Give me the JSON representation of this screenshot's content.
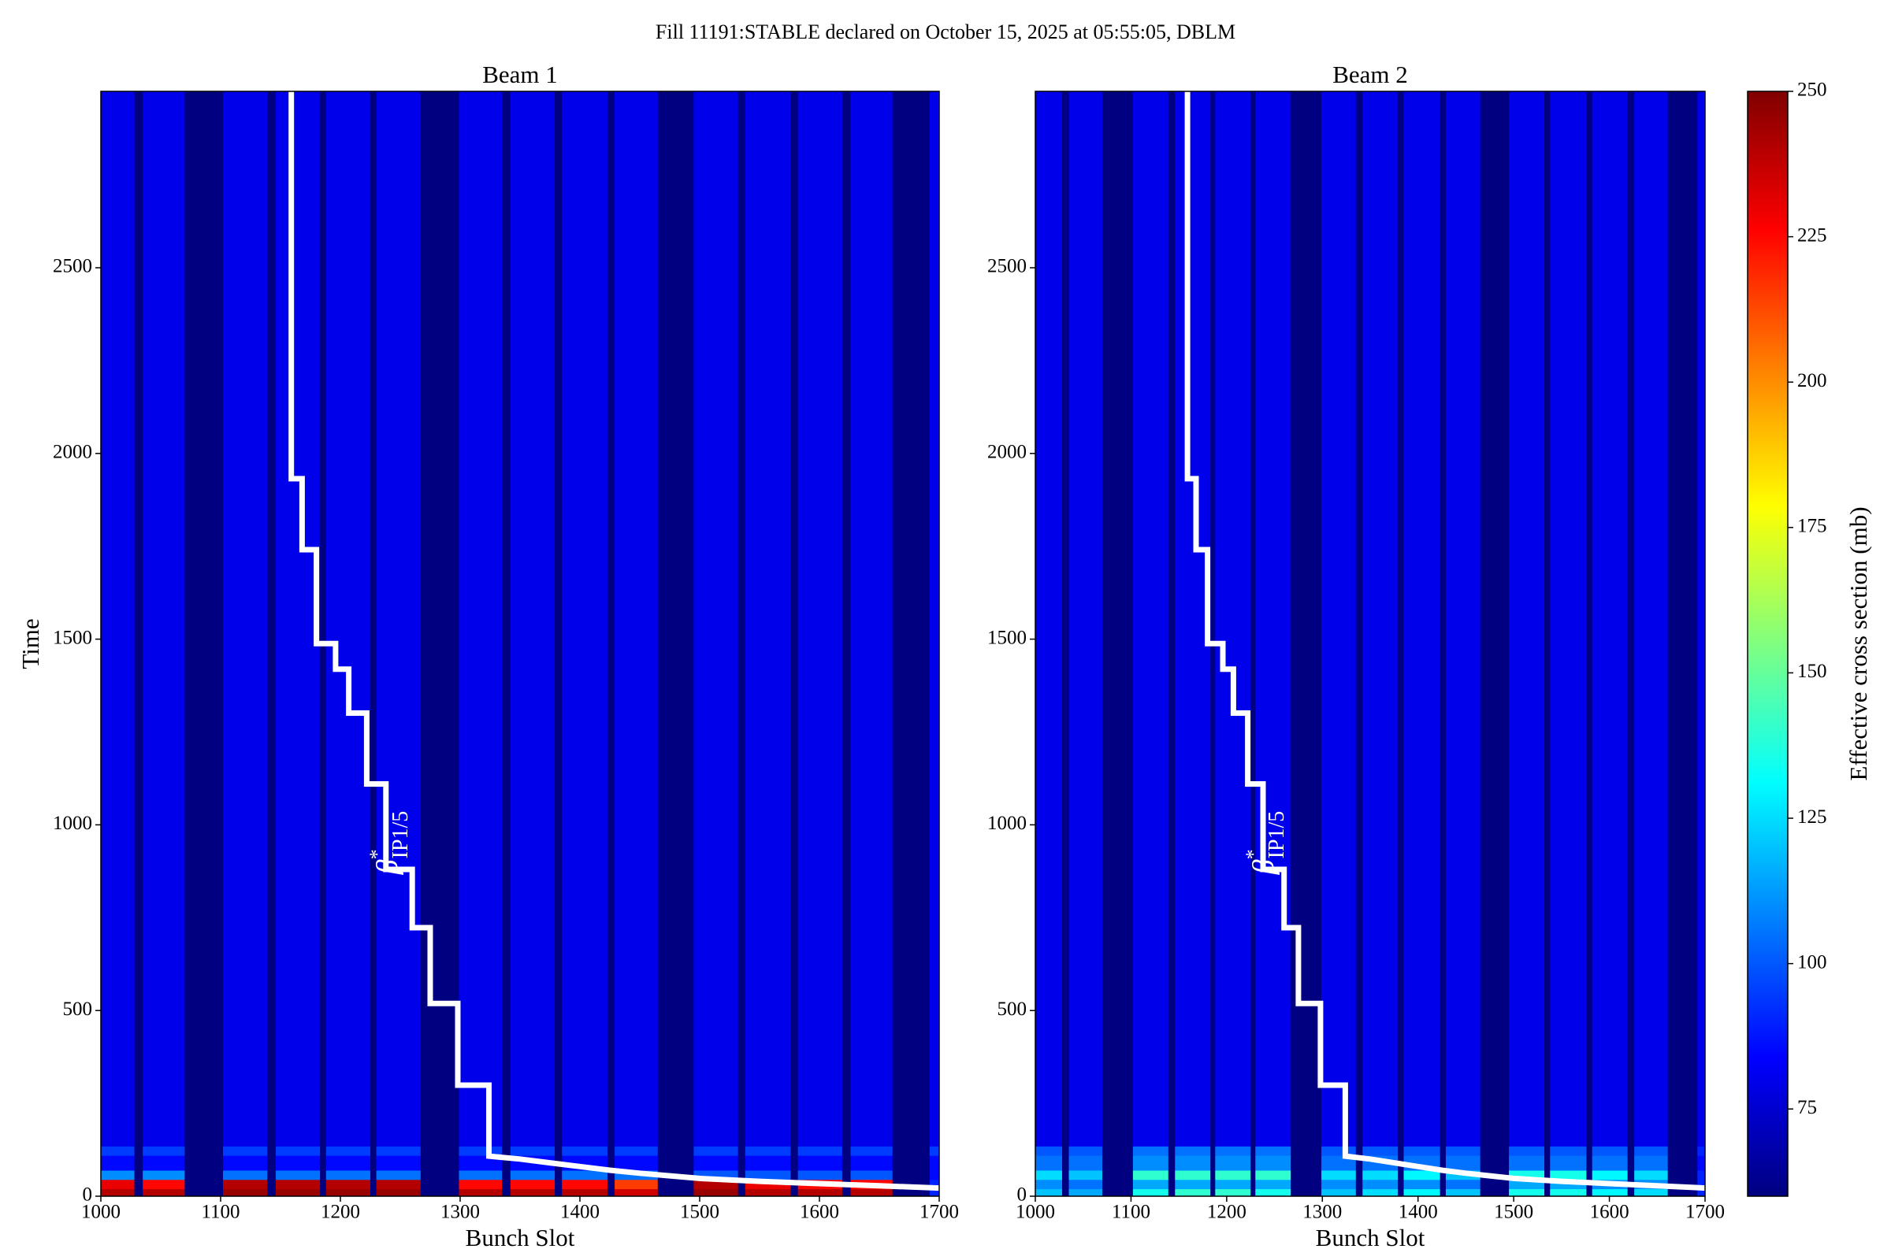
{
  "title": "Fill 11191:STABLE declared on October 15, 2025 at 05:55:05, DBLM",
  "colorbar": {
    "label": "Effective cross section (mb)",
    "colormap": "jet",
    "clim": [
      60,
      250
    ],
    "ticks": [
      75,
      100,
      125,
      150,
      175,
      200,
      225,
      250
    ]
  },
  "chart_data": [
    {
      "type": "heatmap",
      "title": "Beam 1",
      "xlabel": "Bunch Slot",
      "ylabel": "Time",
      "xlim": [
        1000,
        1700
      ],
      "ylim": [
        0,
        2975
      ],
      "xticks": [
        1000,
        1100,
        1200,
        1300,
        1400,
        1500,
        1600,
        1700
      ],
      "yticks": [
        0,
        500,
        1000,
        1500,
        2000,
        2500
      ],
      "x_edges": [
        1000,
        1028,
        1035,
        1070,
        1102,
        1139,
        1146,
        1183,
        1188,
        1225,
        1230,
        1267,
        1299,
        1335,
        1342,
        1379,
        1385,
        1423,
        1429,
        1465,
        1495,
        1532,
        1538,
        1576,
        1582,
        1619,
        1626,
        1661,
        1692,
        1700
      ],
      "y_edges": [
        0,
        20,
        45,
        70,
        110,
        135,
        2975
      ],
      "z": [
        [
          240,
          60,
          240,
          60,
          245,
          60,
          245,
          60,
          245,
          60,
          245,
          60,
          240,
          60,
          240,
          60,
          240,
          60,
          235,
          60,
          245,
          60,
          240,
          60,
          240,
          60,
          240,
          60,
          90
        ],
        [
          230,
          60,
          225,
          60,
          240,
          60,
          240,
          60,
          240,
          60,
          240,
          60,
          225,
          60,
          225,
          60,
          225,
          60,
          215,
          60,
          240,
          60,
          230,
          60,
          225,
          60,
          225,
          60,
          90
        ],
        [
          110,
          60,
          110,
          60,
          105,
          60,
          105,
          60,
          105,
          60,
          105,
          60,
          105,
          60,
          105,
          60,
          105,
          60,
          105,
          60,
          100,
          60,
          100,
          60,
          100,
          60,
          100,
          60,
          85
        ],
        [
          85,
          60,
          85,
          60,
          85,
          60,
          85,
          60,
          85,
          60,
          85,
          60,
          85,
          60,
          85,
          60,
          85,
          60,
          85,
          60,
          85,
          60,
          85,
          60,
          85,
          60,
          85,
          60,
          85
        ],
        [
          95,
          60,
          95,
          60,
          95,
          60,
          95,
          60,
          95,
          60,
          95,
          60,
          95,
          60,
          95,
          60,
          95,
          60,
          95,
          60,
          95,
          60,
          95,
          60,
          95,
          60,
          95,
          60,
          95
        ],
        [
          80,
          60,
          80,
          60,
          80,
          60,
          80,
          60,
          80,
          60,
          80,
          60,
          80,
          60,
          80,
          60,
          80,
          60,
          80,
          60,
          80,
          60,
          80,
          60,
          80,
          60,
          80,
          60,
          80
        ]
      ],
      "line": {
        "color": "#ffffff",
        "x": [
          1159,
          1159,
          1168,
          1168,
          1180,
          1180,
          1196,
          1196,
          1207,
          1207,
          1222,
          1222,
          1238,
          1238,
          1260,
          1260,
          1275,
          1275,
          1298,
          1298,
          1324,
          1324,
          1350,
          1375,
          1400,
          1425,
          1450,
          1475,
          1500,
          1550,
          1600,
          1650,
          1700
        ],
        "values": [
          2975,
          1932,
          1932,
          1741,
          1741,
          1488,
          1488,
          1419,
          1419,
          1301,
          1301,
          1110,
          1110,
          880,
          880,
          723,
          723,
          519,
          519,
          299,
          299,
          108,
          100,
          90,
          80,
          70,
          62,
          55,
          48,
          40,
          34,
          28,
          22
        ]
      },
      "annotation": {
        "symbol": "β",
        "superscript": "*",
        "subscript": "IP1/5"
      }
    },
    {
      "type": "heatmap",
      "title": "Beam 2",
      "xlabel": "Bunch Slot",
      "xlim": [
        1000,
        1700
      ],
      "ylim": [
        0,
        2975
      ],
      "xticks": [
        1000,
        1100,
        1200,
        1300,
        1400,
        1500,
        1600,
        1700
      ],
      "yticks": [
        0,
        500,
        1000,
        1500,
        2000,
        2500
      ],
      "x_edges": [
        1000,
        1028,
        1035,
        1070,
        1102,
        1139,
        1146,
        1183,
        1188,
        1225,
        1230,
        1267,
        1299,
        1335,
        1342,
        1379,
        1385,
        1423,
        1429,
        1465,
        1495,
        1532,
        1538,
        1576,
        1582,
        1619,
        1626,
        1661,
        1692,
        1700
      ],
      "y_edges": [
        0,
        20,
        45,
        70,
        110,
        135,
        2975
      ],
      "z": [
        [
          120,
          60,
          115,
          60,
          135,
          60,
          140,
          60,
          140,
          60,
          135,
          60,
          120,
          60,
          125,
          60,
          130,
          60,
          120,
          60,
          135,
          60,
          135,
          60,
          130,
          60,
          125,
          60,
          90
        ],
        [
          110,
          60,
          105,
          60,
          115,
          60,
          115,
          60,
          115,
          60,
          115,
          60,
          110,
          60,
          110,
          60,
          110,
          60,
          105,
          60,
          115,
          60,
          115,
          60,
          110,
          60,
          110,
          60,
          90
        ],
        [
          125,
          60,
          120,
          60,
          140,
          60,
          140,
          60,
          140,
          60,
          140,
          60,
          125,
          60,
          125,
          60,
          130,
          60,
          120,
          60,
          135,
          60,
          135,
          60,
          130,
          60,
          125,
          60,
          90
        ],
        [
          105,
          60,
          105,
          60,
          110,
          60,
          110,
          60,
          110,
          60,
          110,
          60,
          105,
          60,
          105,
          60,
          105,
          60,
          105,
          60,
          105,
          60,
          105,
          60,
          105,
          60,
          105,
          60,
          85
        ],
        [
          100,
          60,
          100,
          60,
          105,
          60,
          105,
          60,
          105,
          60,
          105,
          60,
          100,
          60,
          100,
          60,
          100,
          60,
          100,
          60,
          100,
          60,
          100,
          60,
          100,
          60,
          100,
          60,
          90
        ],
        [
          80,
          60,
          80,
          60,
          80,
          60,
          80,
          60,
          80,
          60,
          80,
          60,
          80,
          60,
          80,
          60,
          80,
          60,
          80,
          60,
          80,
          60,
          80,
          60,
          80,
          60,
          80,
          60,
          80
        ]
      ],
      "line": {
        "color": "#ffffff",
        "x": [
          1159,
          1159,
          1168,
          1168,
          1180,
          1180,
          1196,
          1196,
          1207,
          1207,
          1222,
          1222,
          1238,
          1238,
          1260,
          1260,
          1275,
          1275,
          1298,
          1298,
          1324,
          1324,
          1350,
          1375,
          1400,
          1425,
          1450,
          1475,
          1500,
          1550,
          1600,
          1650,
          1700
        ],
        "values": [
          2975,
          1932,
          1932,
          1741,
          1741,
          1488,
          1488,
          1419,
          1419,
          1301,
          1301,
          1110,
          1110,
          880,
          880,
          723,
          723,
          519,
          519,
          299,
          299,
          108,
          100,
          90,
          80,
          70,
          62,
          55,
          48,
          40,
          34,
          28,
          22
        ]
      },
      "annotation": {
        "symbol": "β",
        "superscript": "*",
        "subscript": "IP1/5"
      }
    }
  ]
}
